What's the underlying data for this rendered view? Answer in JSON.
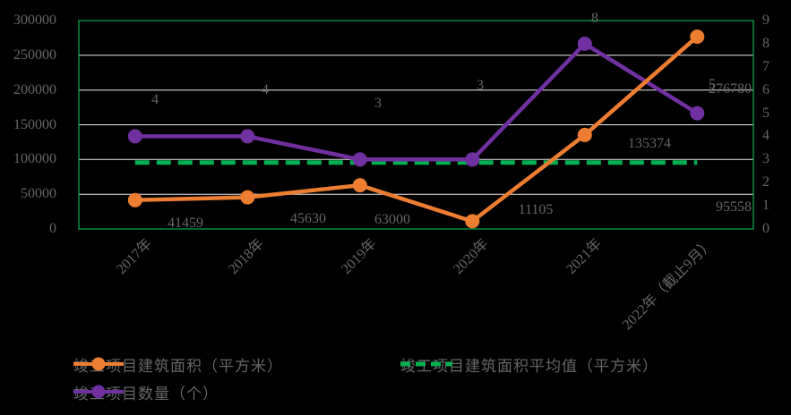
{
  "colors": {
    "background": "#000000",
    "text": "#666666",
    "grid": "#ECECEC",
    "plot_border": "#00B050",
    "orange": "#ED7D31",
    "purple": "#7030A0",
    "green": "#00B050"
  },
  "chart_data": {
    "type": "line",
    "categories": [
      "2017年",
      "2018年",
      "2019年",
      "2020年",
      "2021年",
      "2022年（截止9月）"
    ],
    "series": [
      {
        "name": "竣工项目建筑面积（平方米）",
        "axis": "left",
        "color": "#ED7D31",
        "style": "solid-marker",
        "values": [
          41459,
          45630,
          63000,
          11105,
          135374,
          276780
        ],
        "data_labels": [
          "41459",
          "45630",
          "63000",
          "11105",
          "135374",
          "276780"
        ]
      },
      {
        "name": "竣工项目数量（个）",
        "axis": "right",
        "color": "#7030A0",
        "style": "solid-marker",
        "values": [
          4,
          4,
          3,
          3,
          8,
          5
        ],
        "data_labels": [
          "4",
          "4",
          "3",
          "3",
          "8",
          "5"
        ]
      },
      {
        "name": "竣工项目建筑面积平均值（平方米）",
        "axis": "left",
        "color": "#00B050",
        "style": "dashed",
        "values": [
          95558,
          95558,
          95558,
          95558,
          95558,
          95558
        ],
        "data_labels": [
          "",
          "",
          "",
          "",
          "",
          "95558"
        ]
      }
    ],
    "left_axis": {
      "min": 0,
      "max": 300000,
      "step": 50000,
      "tick_labels": [
        "300000",
        "250000",
        "200000",
        "150000",
        "100000",
        "50000",
        "0"
      ]
    },
    "right_axis": {
      "min": 0,
      "max": 9,
      "step": 1,
      "tick_labels": [
        "9",
        "8",
        "7",
        "6",
        "5",
        "4",
        "3",
        "2",
        "1",
        "0"
      ]
    },
    "grid": true,
    "legend_position": "bottom"
  }
}
